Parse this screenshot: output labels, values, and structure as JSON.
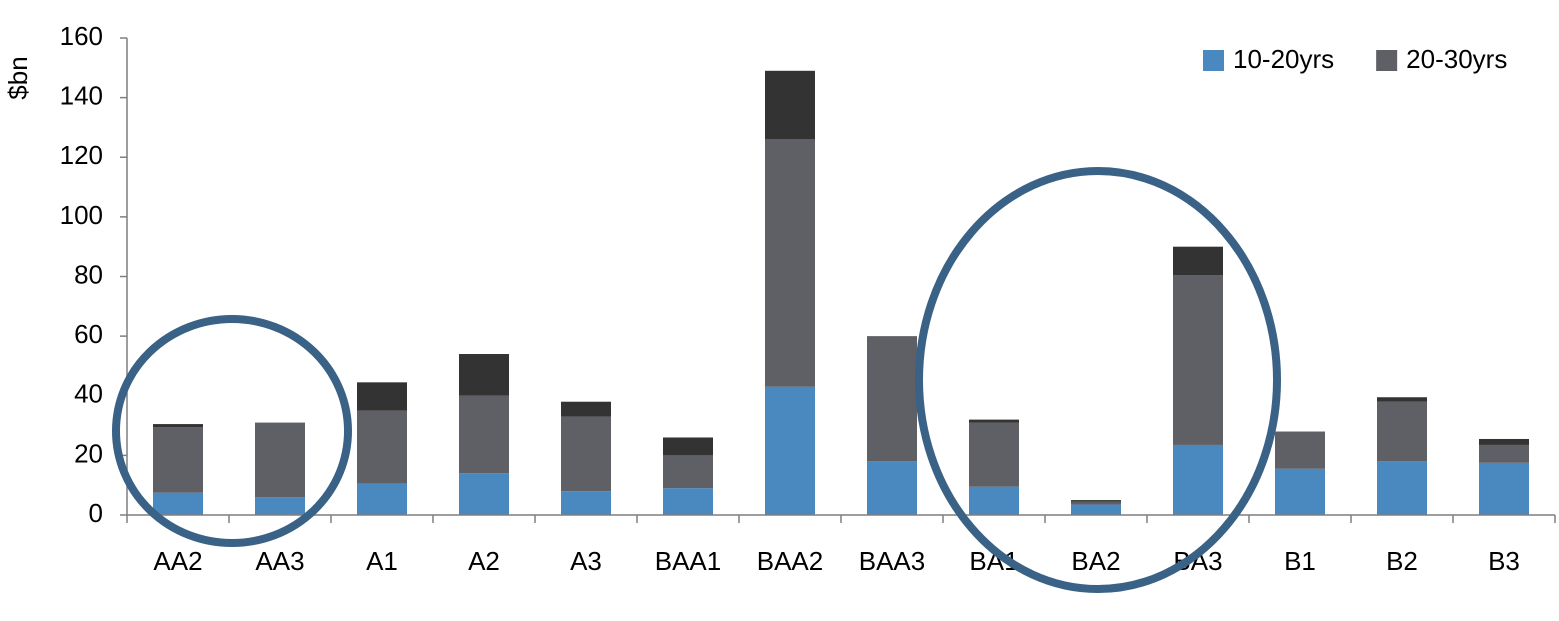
{
  "chart_data": {
    "type": "stacked_bar",
    "y_label": "$bn",
    "categories": [
      "AA2",
      "AA3",
      "A1",
      "A2",
      "A3",
      "BAA1",
      "BAA2",
      "BAA3",
      "BA1",
      "BA2",
      "BA3",
      "B1",
      "B2",
      "B3"
    ],
    "series": [
      {
        "name": "10-20yrs",
        "color": "#4a89c0",
        "values": [
          7.5,
          6,
          10.5,
          14,
          8,
          9,
          43,
          18,
          9.5,
          3.5,
          23.5,
          15.5,
          18,
          17.5
        ]
      },
      {
        "name": "20-30yrs",
        "color": "#5f6065",
        "values": [
          22,
          25,
          24.5,
          26,
          25,
          11,
          83,
          42,
          21.5,
          1,
          57,
          12.5,
          20,
          6
        ]
      },
      {
        "color": "#333333",
        "values": [
          1,
          0,
          9.5,
          14,
          5,
          6,
          23,
          0,
          1,
          0.5,
          9.5,
          0,
          1.5,
          2
        ]
      }
    ],
    "ylim": [
      0,
      160
    ],
    "yticks": [
      0,
      20,
      40,
      60,
      80,
      100,
      120,
      140,
      160
    ],
    "grid": false,
    "legend": "top-right"
  }
}
